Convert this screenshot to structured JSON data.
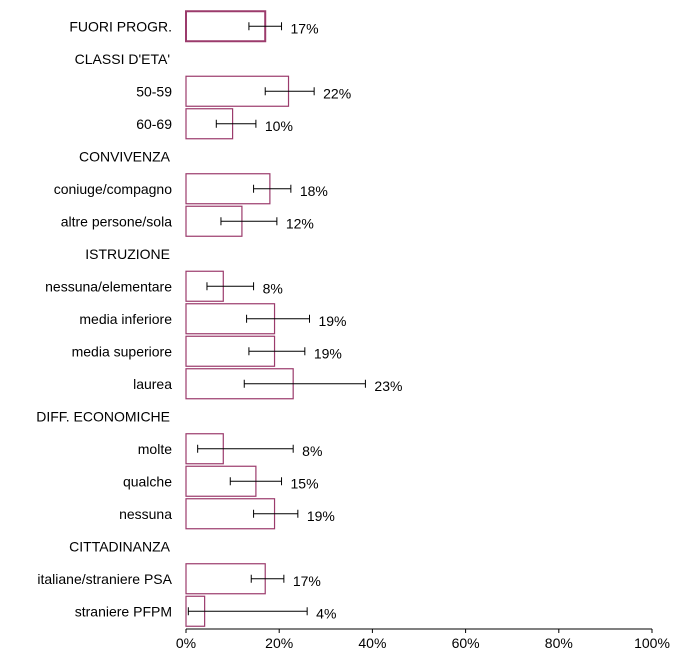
{
  "chart_data": {
    "type": "bar",
    "orientation": "horizontal",
    "xlim": [
      0,
      100
    ],
    "x_tick_labels": [
      "0%",
      "20%",
      "40%",
      "60%",
      "80%",
      "100%"
    ],
    "x_ticks": [
      0,
      20,
      40,
      60,
      80,
      100
    ],
    "colors": {
      "bar_border": "#9b3b6c",
      "bar_border_total": "#9b3b6c",
      "bar_fill": "#ffffff",
      "axis": "#000000"
    },
    "rows": [
      {
        "label": "FUORI PROGR.",
        "kind": "total",
        "value": 17,
        "ci": [
          13.5,
          20.5
        ],
        "value_label": "17%"
      },
      {
        "label": "CLASSI D'ETA'",
        "kind": "header"
      },
      {
        "label": "50-59",
        "kind": "bar",
        "value": 22,
        "ci": [
          17,
          27.5
        ],
        "value_label": "22%"
      },
      {
        "label": "60-69",
        "kind": "bar",
        "value": 10,
        "ci": [
          6.5,
          15
        ],
        "value_label": "10%"
      },
      {
        "label": "CONVIVENZA",
        "kind": "header"
      },
      {
        "label": "coniuge/compagno",
        "kind": "bar",
        "value": 18,
        "ci": [
          14.5,
          22.5
        ],
        "value_label": "18%"
      },
      {
        "label": "altre persone/sola",
        "kind": "bar",
        "value": 12,
        "ci": [
          7.5,
          19.5
        ],
        "value_label": "12%"
      },
      {
        "label": "ISTRUZIONE",
        "kind": "header"
      },
      {
        "label": "nessuna/elementare",
        "kind": "bar",
        "value": 8,
        "ci": [
          4.5,
          14.5
        ],
        "value_label": "8%"
      },
      {
        "label": "media inferiore",
        "kind": "bar",
        "value": 19,
        "ci": [
          13,
          26.5
        ],
        "value_label": "19%"
      },
      {
        "label": "media superiore",
        "kind": "bar",
        "value": 19,
        "ci": [
          13.5,
          25.5
        ],
        "value_label": "19%"
      },
      {
        "label": "laurea",
        "kind": "bar",
        "value": 23,
        "ci": [
          12.5,
          38.5
        ],
        "value_label": "23%"
      },
      {
        "label": "DIFF. ECONOMICHE",
        "kind": "header"
      },
      {
        "label": "molte",
        "kind": "bar",
        "value": 8,
        "ci": [
          2.5,
          23
        ],
        "value_label": "8%"
      },
      {
        "label": "qualche",
        "kind": "bar",
        "value": 15,
        "ci": [
          9.5,
          20.5
        ],
        "value_label": "15%"
      },
      {
        "label": "nessuna",
        "kind": "bar",
        "value": 19,
        "ci": [
          14.5,
          24
        ],
        "value_label": "19%"
      },
      {
        "label": "CITTADINANZA",
        "kind": "header"
      },
      {
        "label": "italiane/straniere PSA",
        "kind": "bar",
        "value": 17,
        "ci": [
          14,
          21
        ],
        "value_label": "17%"
      },
      {
        "label": "straniere PFPM",
        "kind": "bar",
        "value": 4,
        "ci": [
          0.5,
          26
        ],
        "value_label": "4%"
      }
    ]
  }
}
